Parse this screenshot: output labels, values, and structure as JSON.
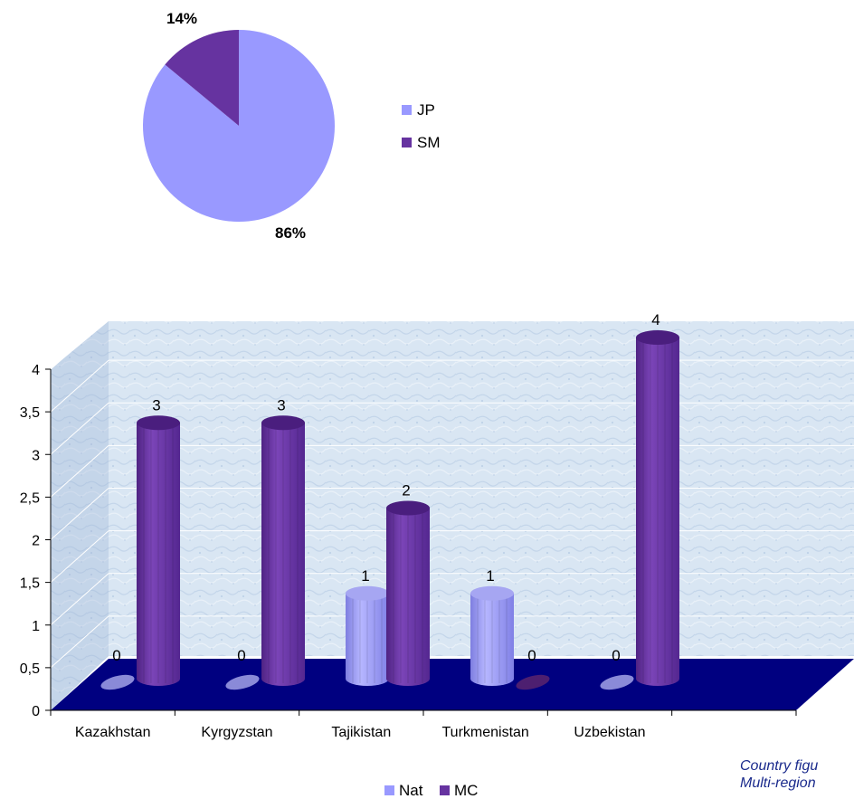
{
  "colors": {
    "nat": "#9999ff",
    "mc": "#6633a0",
    "floor": "#000080"
  },
  "chart_data": [
    {
      "type": "pie",
      "slices": [
        {
          "name": "JP",
          "value": 86,
          "label": "86%"
        },
        {
          "name": "SM",
          "value": 14,
          "label": "14%"
        }
      ],
      "legend": [
        "JP",
        "SM"
      ],
      "legend_position": "right"
    },
    {
      "type": "bar",
      "style": "3d-cylinder",
      "categories": [
        "Kazakhstan",
        "Kyrgyzstan",
        "Tajikistan",
        "Turkmenistan",
        "Uzbekistan"
      ],
      "series": [
        {
          "name": "Nat",
          "values": [
            0,
            0,
            1,
            1,
            0
          ]
        },
        {
          "name": "MC",
          "values": [
            3,
            3,
            2,
            0,
            4
          ]
        }
      ],
      "ylim": [
        0,
        4
      ],
      "yticks": [
        "0",
        "0,5",
        "1",
        "1,5",
        "2",
        "2,5",
        "3",
        "3,5",
        "4"
      ],
      "grid": true,
      "legend_position": "bottom"
    }
  ],
  "note": {
    "line1": "Country figu",
    "line2": "Multi-region"
  }
}
